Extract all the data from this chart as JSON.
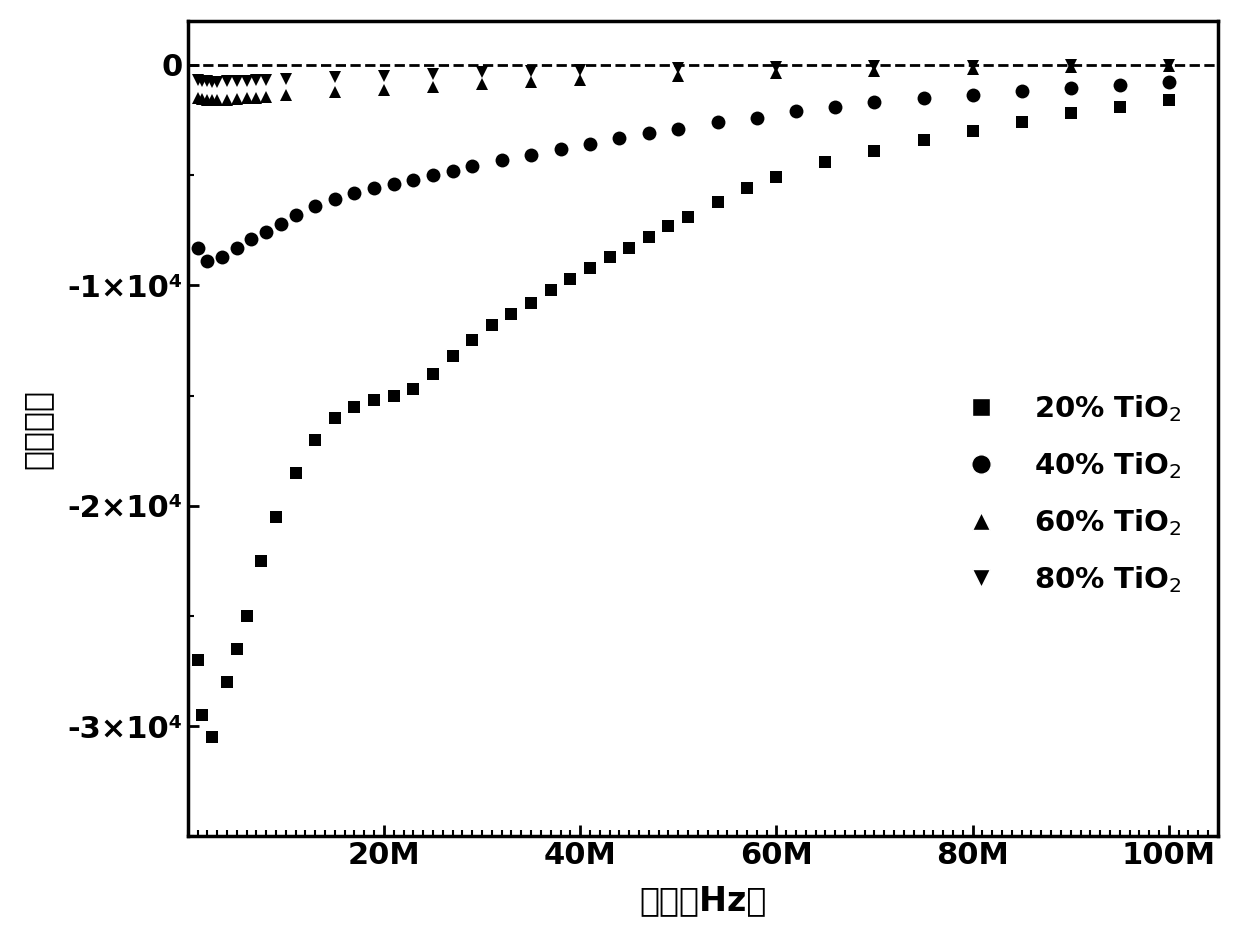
{
  "title": "",
  "xlabel": "频率（Hz）",
  "ylabel": "介电常数",
  "background_color": "#ffffff",
  "ylim": [
    -35000,
    2000
  ],
  "xlim": [
    0,
    105000000.0
  ],
  "legend_labels": [
    "20% TiO$_2$",
    "40% TiO$_2$",
    "60% TiO$_2$",
    "80% TiO$_2$"
  ],
  "series_20_x": [
    1000000.0,
    1500000.0,
    2500000.0,
    4000000.0,
    5000000.0,
    6000000.0,
    7500000.0,
    9000000.0,
    11000000.0,
    13000000.0,
    15000000.0,
    17000000.0,
    19000000.0,
    21000000.0,
    23000000.0,
    25000000.0,
    27000000.0,
    29000000.0,
    31000000.0,
    33000000.0,
    35000000.0,
    37000000.0,
    39000000.0,
    41000000.0,
    43000000.0,
    45000000.0,
    47000000.0,
    49000000.0,
    51000000.0,
    54000000.0,
    57000000.0,
    60000000.0,
    65000000.0,
    70000000.0,
    75000000.0,
    80000000.0,
    85000000.0,
    90000000.0,
    95000000.0,
    100000000.0
  ],
  "series_20_y": [
    -27000,
    -29500,
    -30500,
    -28000,
    -26500,
    -25000,
    -22500,
    -20500,
    -18500,
    -17000,
    -16000,
    -15500,
    -15200,
    -15000,
    -14700,
    -14000,
    -13200,
    -12500,
    -11800,
    -11300,
    -10800,
    -10200,
    -9700,
    -9200,
    -8700,
    -8300,
    -7800,
    -7300,
    -6900,
    -6200,
    -5600,
    -5100,
    -4400,
    -3900,
    -3400,
    -3000,
    -2600,
    -2200,
    -1900,
    -1600
  ],
  "series_40_x": [
    1000000.0,
    2000000.0,
    3500000.0,
    5000000.0,
    6500000.0,
    8000000.0,
    9500000.0,
    11000000.0,
    13000000.0,
    15000000.0,
    17000000.0,
    19000000.0,
    21000000.0,
    23000000.0,
    25000000.0,
    27000000.0,
    29000000.0,
    32000000.0,
    35000000.0,
    38000000.0,
    41000000.0,
    44000000.0,
    47000000.0,
    50000000.0,
    54000000.0,
    58000000.0,
    62000000.0,
    66000000.0,
    70000000.0,
    75000000.0,
    80000000.0,
    85000000.0,
    90000000.0,
    95000000.0,
    100000000.0
  ],
  "series_40_y": [
    -8300,
    -8900,
    -8700,
    -8300,
    -7900,
    -7600,
    -7200,
    -6800,
    -6400,
    -6100,
    -5800,
    -5600,
    -5400,
    -5200,
    -5000,
    -4800,
    -4600,
    -4300,
    -4100,
    -3800,
    -3600,
    -3300,
    -3100,
    -2900,
    -2600,
    -2400,
    -2100,
    -1900,
    -1700,
    -1500,
    -1350,
    -1200,
    -1050,
    -900,
    -780
  ],
  "series_60_x": [
    1000000.0,
    1500000.0,
    2000000.0,
    2500000.0,
    3000000.0,
    4000000.0,
    5000000.0,
    6000000.0,
    7000000.0,
    8000000.0,
    10000000.0,
    15000000.0,
    20000000.0,
    25000000.0,
    30000000.0,
    35000000.0,
    40000000.0,
    50000000.0,
    60000000.0,
    70000000.0,
    80000000.0,
    90000000.0,
    100000000.0
  ],
  "series_60_y": [
    -1500,
    -1550,
    -1580,
    -1600,
    -1600,
    -1580,
    -1550,
    -1520,
    -1480,
    -1440,
    -1380,
    -1250,
    -1120,
    -1000,
    -880,
    -780,
    -670,
    -500,
    -370,
    -260,
    -175,
    -105,
    -50
  ],
  "series_80_x": [
    1000000.0,
    1500000.0,
    2000000.0,
    2500000.0,
    3000000.0,
    4000000.0,
    5000000.0,
    6000000.0,
    7000000.0,
    8000000.0,
    10000000.0,
    15000000.0,
    20000000.0,
    25000000.0,
    30000000.0,
    35000000.0,
    40000000.0,
    50000000.0,
    60000000.0,
    70000000.0,
    80000000.0,
    90000000.0,
    100000000.0
  ],
  "series_80_y": [
    -680,
    -720,
    -740,
    -760,
    -760,
    -750,
    -730,
    -710,
    -690,
    -665,
    -630,
    -560,
    -490,
    -420,
    -340,
    -270,
    -210,
    -145,
    -95,
    -60,
    -38,
    -20,
    -8
  ],
  "ytick_positions": [
    0,
    -10000,
    -20000,
    -30000
  ],
  "ytick_labels": [
    "0",
    "-1×10⁴",
    "-2×10⁴",
    "-3×10⁴"
  ],
  "xtick_positions": [
    20000000.0,
    40000000.0,
    60000000.0,
    80000000.0,
    100000000.0
  ],
  "xtick_labels": [
    "20M",
    "40M",
    "60M",
    "80M",
    "100M"
  ]
}
